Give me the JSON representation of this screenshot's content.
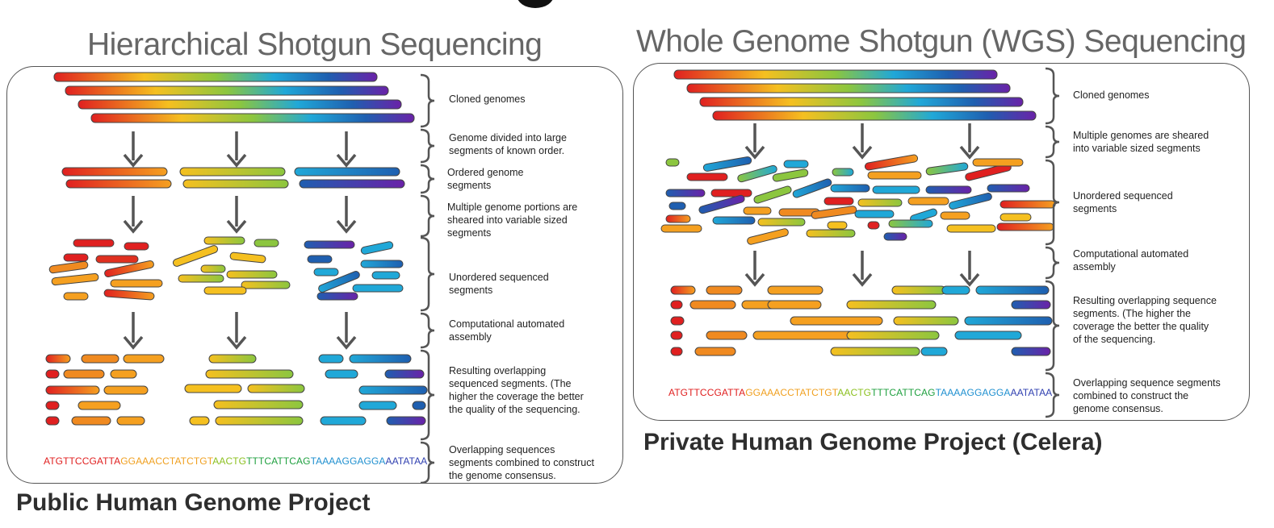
{
  "header": {
    "left_title": "Hierarchical Shotgun Sequencing",
    "right_title": "Whole Genome Shotgun (WGS) Sequencing"
  },
  "captions": {
    "left": "Public Human Genome Project",
    "right": "Private Human Genome Project (Celera)"
  },
  "left_steps": [
    "Cloned genomes",
    "Genome divided into large\nsegments of known order.",
    "Ordered genome\nsegments",
    "Multiple genome portions are\nsheared into variable sized\nsegments",
    "Unordered sequenced\nsegments",
    "Computational automated\nassembly",
    "Resulting overlapping\nsequenced segments. (The\nhigher the coverage the better\nthe quality of the sequencing.",
    "Overlapping sequences\nsegments combined to construct\nthe genome consensus."
  ],
  "right_steps": [
    "Cloned genomes",
    "Multiple genomes are sheared\ninto variable sized segments",
    "Unordered sequenced\nsegments",
    "Computational automated\nassembly",
    "Resulting overlapping sequence\nsegments. (The higher the\ncoverage the better the quality\nof the sequencing.",
    "Overlapping sequence segments\ncombined to construct the\ngenome consensus."
  ],
  "consensus": {
    "segments": [
      {
        "text": "ATGTTCCGATTA",
        "color": "#e02020"
      },
      {
        "text": "GGAAACCTATCTGT",
        "color": "#f0a020"
      },
      {
        "text": "AACTG",
        "color": "#8cc020"
      },
      {
        "text": "TTTCATTCAG",
        "color": "#20a040"
      },
      {
        "text": "TAAAAGGAGGA",
        "color": "#2090d0"
      },
      {
        "text": "AATATAA",
        "color": "#3040b0"
      }
    ]
  },
  "colors": {
    "red": "#e02020",
    "orange": "#f08a20",
    "yellow": "#f5c020",
    "green": "#8cc63f",
    "cyan": "#20a8d8",
    "blue": "#1f5fb0",
    "purple": "#6a22a8",
    "arrow": "#555555",
    "bracket": "#555555"
  }
}
